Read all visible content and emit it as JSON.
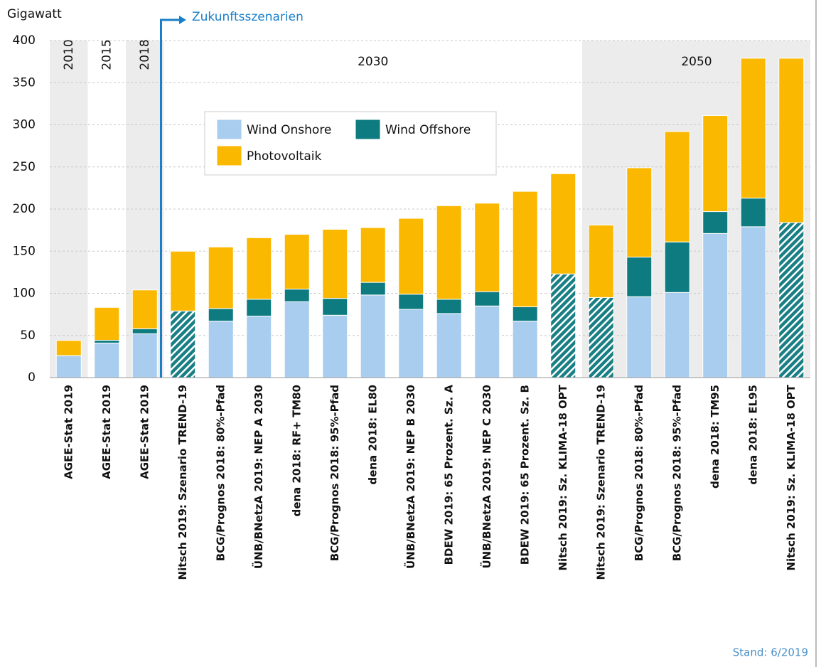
{
  "chart_data": {
    "type": "stacked_bar",
    "y_label": "Gigawatt",
    "annotation": "Zukunftsszenarien",
    "source": "Stand: 6/2019",
    "categories": [
      "AGEE-Stat 2019",
      "AGEE-Stat 2019",
      "AGEE-Stat 2019",
      "Nitsch 2019: Szenario TREND-19",
      "BCG/Prognos 2018: 80%-Pfad",
      "ÜNB/BNetzA 2019: NEP A 2030",
      "dena 2018: RF+ TM80",
      "BCG/Prognos 2018: 95%-Pfad",
      "dena 2018: EL80",
      "ÜNB/BNetzA 2019: NEP B 2030",
      "BDEW 2019: 65 Prozent. Sz. A",
      "ÜNB/BNetzA 2019: NEP C 2030",
      "BDEW 2019: 65 Prozent. Sz. B",
      "Nitsch 2019: Sz. KLIMA-18 OPT",
      "Nitsch 2019: Szenario TREND-19",
      "BCG/Prognos 2018: 80%-Pfad",
      "BCG/Prognos 2018: 95%-Pfad",
      "dena 2018: TM95",
      "dena 2018: EL95",
      "Nitsch 2019: Sz. KLIMA-18 OPT"
    ],
    "periods": [
      {
        "label": "2010",
        "first": 0,
        "last": 0
      },
      {
        "label": "2015",
        "first": 1,
        "last": 1
      },
      {
        "label": "2018",
        "first": 2,
        "last": 2
      },
      {
        "label": "2030",
        "first": 3,
        "last": 13
      },
      {
        "label": "2050",
        "first": 14,
        "last": 19
      }
    ],
    "scenario_start": 3,
    "series": [
      {
        "pattern": "hatch",
        "color": "#1a7f84",
        "values": [
          null,
          null,
          null,
          79,
          null,
          null,
          null,
          null,
          null,
          null,
          null,
          null,
          null,
          123,
          95,
          null,
          null,
          null,
          null,
          184
        ]
      },
      {
        "name": "Wind Onshore",
        "color": "#a8cdee",
        "values": [
          26,
          41,
          52,
          null,
          67,
          73,
          90,
          74,
          98,
          81,
          76,
          85,
          67,
          null,
          null,
          96,
          101,
          171,
          179,
          null
        ]
      },
      {
        "name": "Wind Offshore",
        "color": "#0e7b80",
        "values": [
          0.1,
          3.3,
          6,
          null,
          15,
          20,
          15,
          20,
          15,
          18,
          17,
          17,
          17,
          null,
          null,
          47,
          60,
          26,
          34,
          null
        ]
      },
      {
        "name": "Photovoltaik",
        "color": "#fbb800",
        "values": [
          18,
          39,
          46,
          71,
          73,
          73,
          65,
          82,
          65,
          90,
          111,
          105,
          137,
          119,
          86,
          106,
          131,
          114,
          166,
          195
        ]
      }
    ],
    "ylim": [
      0,
      400
    ],
    "yticks": [
      0,
      50,
      100,
      150,
      200,
      250,
      300,
      350,
      400
    ],
    "grid": true
  }
}
